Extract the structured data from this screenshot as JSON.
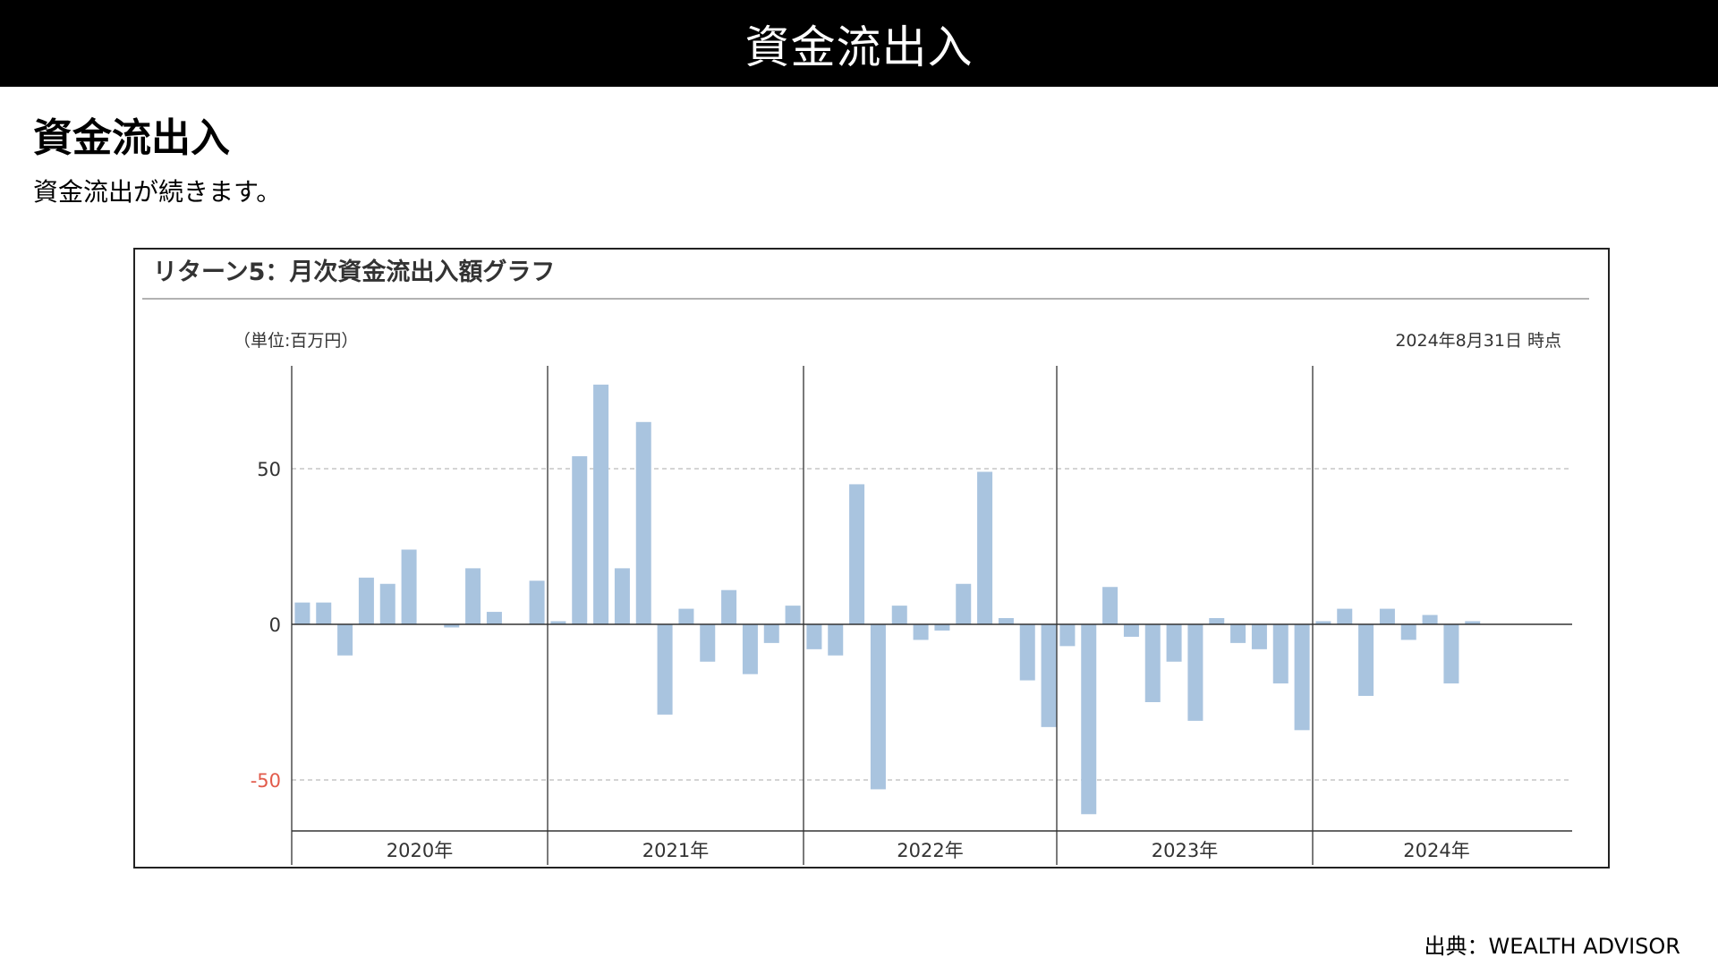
{
  "header": {
    "title": "資金流出入"
  },
  "section": {
    "title": "資金流出入",
    "description": "資金流出が続きます。"
  },
  "source": "出典：WEALTH ADVISOR",
  "colors": {
    "bar": "#a9c4df",
    "negative_tick": "#e25b4b",
    "axis": "#333333",
    "grid": "#bbbbbb"
  },
  "chart_data": {
    "type": "bar",
    "title": "リターン5：月次資金流出入額グラフ",
    "unit_label": "（単位:百万円）",
    "as_of": "2024年8月31日 時点",
    "ylim": [
      -67,
      84
    ],
    "yticks": [
      50,
      0,
      -50
    ],
    "grid": "dashed at 50 and -50",
    "year_labels": [
      "2020年",
      "2021年",
      "2022年",
      "2023年",
      "2024年"
    ],
    "years": [
      {
        "label": "2020年",
        "values": [
          7,
          7,
          -10,
          15,
          13,
          24,
          0,
          -1,
          18,
          4,
          0,
          14
        ]
      },
      {
        "label": "2021年",
        "values": [
          1,
          54,
          77,
          18,
          65,
          -29,
          5,
          -12,
          11,
          -16,
          -6,
          6
        ]
      },
      {
        "label": "2022年",
        "values": [
          -8,
          -10,
          45,
          -53,
          6,
          -5,
          -2,
          13,
          49,
          2,
          -18,
          -33
        ]
      },
      {
        "label": "2023年",
        "values": [
          -7,
          -61,
          12,
          -4,
          -25,
          -12,
          -31,
          2,
          -6,
          -8,
          -19,
          -34
        ]
      },
      {
        "label": "2024年",
        "values": [
          1,
          5,
          -23,
          5,
          -5,
          3,
          -19,
          1
        ]
      }
    ]
  }
}
